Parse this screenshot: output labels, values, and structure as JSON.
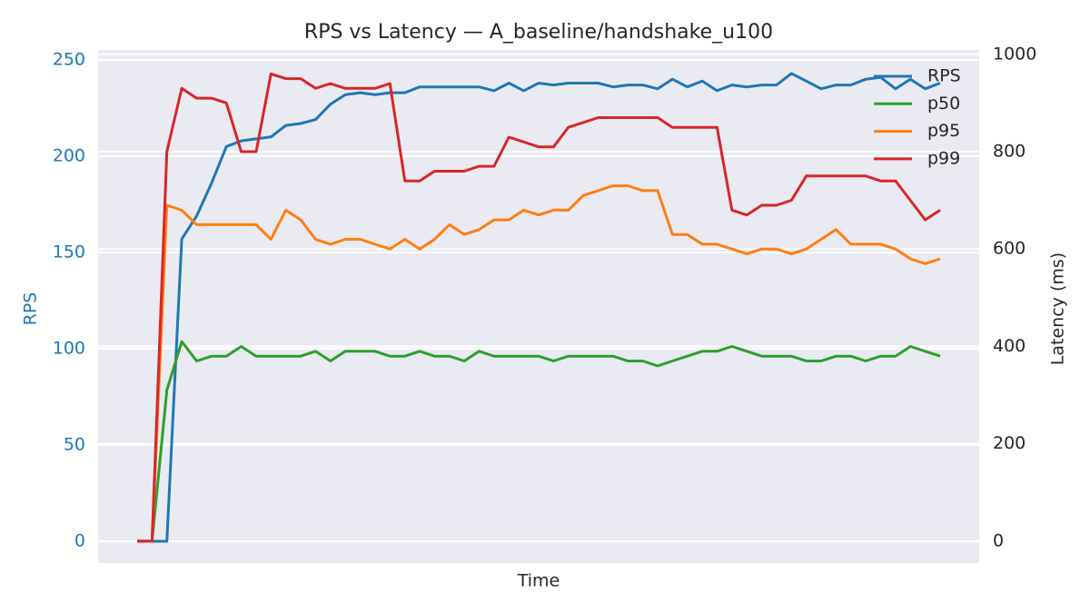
{
  "chart_data": {
    "type": "line",
    "title": "RPS vs Latency — A_baseline/handshake_u100",
    "xlabel": "Time",
    "ylabel": "RPS",
    "y2label": "Latency (ms)",
    "categories": [
      null,
      null,
      null,
      null,
      null,
      null,
      null,
      null,
      null,
      null,
      null,
      null,
      null,
      null,
      null,
      null,
      null,
      null,
      null,
      null,
      null,
      null,
      null,
      null,
      null,
      null,
      null,
      null,
      null,
      null,
      null,
      null,
      null,
      null,
      null,
      null,
      null,
      null,
      null,
      null,
      null,
      null,
      null,
      null,
      null,
      null,
      null,
      null,
      null,
      null,
      null,
      null,
      null,
      null,
      null
    ],
    "ylim": [
      -11.3,
      255.2
    ],
    "yticks": [
      0,
      50,
      100,
      150,
      200,
      250
    ],
    "y2lim": [
      -45,
      1009
    ],
    "y2ticks": [
      0,
      200,
      400,
      600,
      800,
      1000
    ],
    "grid": true,
    "legend": "upper right",
    "series": [
      {
        "name": "RPS",
        "color": "#1f77b4",
        "axis": "y",
        "values": [
          0,
          0,
          0,
          157,
          169,
          186,
          205,
          208,
          209,
          210,
          216,
          217,
          219,
          227,
          232,
          233,
          232,
          233,
          233,
          236,
          236,
          236,
          236,
          236,
          234,
          238,
          234,
          238,
          237,
          238,
          238,
          238,
          236,
          237,
          237,
          235,
          240,
          236,
          239,
          234,
          237,
          236,
          237,
          237,
          243,
          239,
          235,
          237,
          237,
          240,
          241,
          235,
          240,
          235,
          238
        ]
      },
      {
        "name": "p50",
        "color": "#2ca02c",
        "axis": "y2",
        "values": [
          0,
          0,
          310,
          410,
          370,
          380,
          380,
          400,
          380,
          380,
          380,
          380,
          390,
          370,
          390,
          390,
          390,
          380,
          380,
          390,
          380,
          380,
          370,
          390,
          380,
          380,
          380,
          380,
          370,
          380,
          380,
          380,
          380,
          370,
          370,
          360,
          370,
          380,
          390,
          390,
          400,
          390,
          380,
          380,
          380,
          370,
          370,
          380,
          380,
          370,
          380,
          380,
          400,
          390,
          380
        ]
      },
      {
        "name": "p95",
        "color": "#ff7f0e",
        "axis": "y2",
        "values": [
          0,
          0,
          690,
          680,
          650,
          650,
          650,
          650,
          650,
          620,
          680,
          660,
          620,
          610,
          620,
          620,
          610,
          600,
          620,
          600,
          620,
          650,
          630,
          640,
          660,
          660,
          680,
          670,
          680,
          680,
          710,
          720,
          730,
          730,
          720,
          720,
          630,
          630,
          610,
          610,
          600,
          590,
          600,
          600,
          590,
          600,
          620,
          640,
          610,
          610,
          610,
          600,
          580,
          570,
          580
        ]
      },
      {
        "name": "p99",
        "color": "#d62728",
        "axis": "y2",
        "values": [
          0,
          0,
          800,
          930,
          910,
          910,
          900,
          800,
          800,
          960,
          950,
          950,
          930,
          940,
          930,
          930,
          930,
          940,
          740,
          740,
          760,
          760,
          760,
          770,
          770,
          830,
          820,
          810,
          810,
          850,
          860,
          870,
          870,
          870,
          870,
          870,
          850,
          850,
          850,
          850,
          680,
          670,
          690,
          690,
          700,
          750,
          750,
          750,
          750,
          750,
          740,
          740,
          700,
          660,
          680
        ]
      }
    ]
  }
}
